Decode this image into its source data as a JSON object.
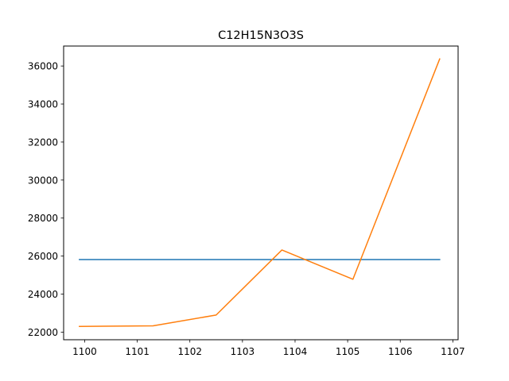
{
  "chart_data": {
    "type": "line",
    "title": "C12H15N3O3S",
    "xlabel": "",
    "ylabel": "",
    "xlim": [
      1099.6,
      1107.1
    ],
    "ylim": [
      21600,
      37050
    ],
    "grid": false,
    "xticks": [
      1100,
      1101,
      1102,
      1103,
      1104,
      1105,
      1106,
      1107
    ],
    "yticks": [
      22000,
      24000,
      26000,
      28000,
      30000,
      32000,
      34000,
      36000
    ],
    "series": [
      {
        "color": "#1f77b4",
        "x": [
          1099.9,
          1106.75
        ],
        "y": [
          25820,
          25820
        ]
      },
      {
        "color": "#ff7f0e",
        "x": [
          1099.9,
          1101.3,
          1102.5,
          1103.75,
          1105.1,
          1106.75
        ],
        "y": [
          22300,
          22330,
          22900,
          26320,
          24780,
          36370
        ]
      }
    ]
  }
}
